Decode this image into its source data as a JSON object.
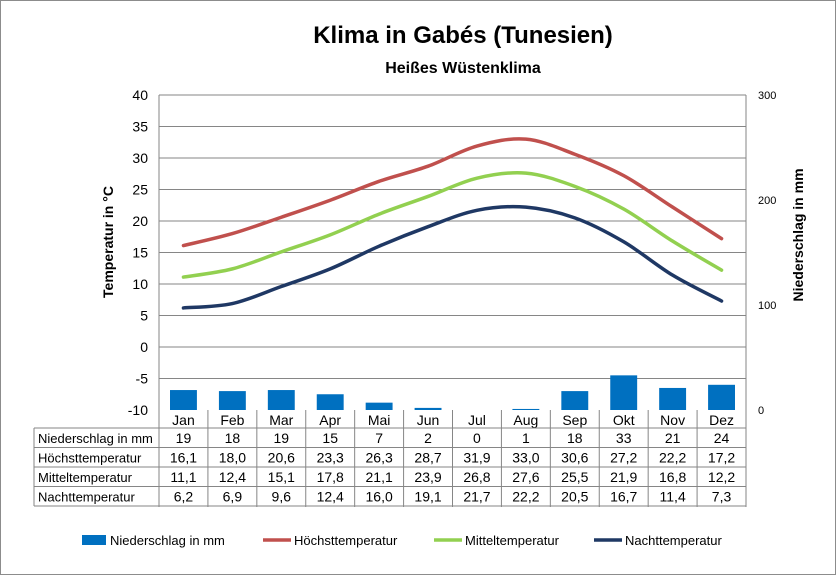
{
  "chart_data": {
    "type": "line",
    "title": "Klima in Gabés (Tunesien)",
    "subtitle": "Heißes Wüstenklima",
    "ylabel_left": "Temperatur in °C",
    "ylabel_right": "Niederschlag in mm",
    "ylim_left": [
      -10,
      40
    ],
    "yticks_left": [
      "40",
      "35",
      "30",
      "25",
      "20",
      "15",
      "10",
      "5",
      "0",
      "-5",
      "-10"
    ],
    "ylim_right": [
      0,
      300
    ],
    "yticks_right": [
      "300",
      "200",
      "100",
      "0"
    ],
    "grid": true,
    "legend_position": "bottom",
    "categories": [
      "Jan",
      "Feb",
      "Mar",
      "Apr",
      "Mai",
      "Jun",
      "Jul",
      "Aug",
      "Sep",
      "Okt",
      "Nov",
      "Dez"
    ],
    "series": [
      {
        "name": "Niederschlag in mm",
        "type": "bar",
        "axis": "right",
        "color": "#0070C0",
        "values": [
          19,
          18,
          19,
          15,
          7,
          2,
          0,
          1,
          18,
          33,
          21,
          24
        ],
        "labels": [
          "19",
          "18",
          "19",
          "15",
          "7",
          "2",
          "0",
          "1",
          "18",
          "33",
          "21",
          "24"
        ]
      },
      {
        "name": "Höchsttemperatur",
        "type": "line",
        "axis": "left",
        "color": "#C0504D",
        "values": [
          16.1,
          18.0,
          20.6,
          23.3,
          26.3,
          28.7,
          31.9,
          33.0,
          30.6,
          27.2,
          22.2,
          17.2
        ],
        "labels": [
          "16,1",
          "18,0",
          "20,6",
          "23,3",
          "26,3",
          "28,7",
          "31,9",
          "33,0",
          "30,6",
          "27,2",
          "22,2",
          "17,2"
        ]
      },
      {
        "name": "Mitteltemperatur",
        "type": "line",
        "axis": "left",
        "color": "#92D050",
        "values": [
          11.1,
          12.4,
          15.1,
          17.8,
          21.1,
          23.9,
          26.8,
          27.6,
          25.5,
          21.9,
          16.8,
          12.2
        ],
        "labels": [
          "11,1",
          "12,4",
          "15,1",
          "17,8",
          "21,1",
          "23,9",
          "26,8",
          "27,6",
          "25,5",
          "21,9",
          "16,8",
          "12,2"
        ]
      },
      {
        "name": "Nachttemperatur",
        "type": "line",
        "axis": "left",
        "color": "#1F3864",
        "values": [
          6.2,
          6.9,
          9.6,
          12.4,
          16.0,
          19.1,
          21.7,
          22.2,
          20.5,
          16.7,
          11.4,
          7.3
        ],
        "labels": [
          "6,2",
          "6,9",
          "9,6",
          "12,4",
          "16,0",
          "19,1",
          "21,7",
          "22,2",
          "20,5",
          "16,7",
          "11,4",
          "7,3"
        ]
      }
    ]
  }
}
